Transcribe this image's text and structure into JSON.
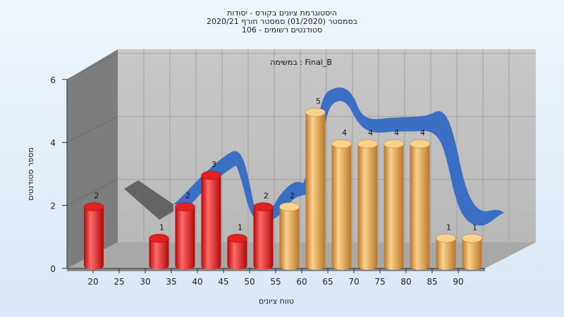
{
  "title_lines": [
    "היסטוגרמת ציונים בקורס - יסודות",
    "בסמסטר  (01/2020)  סמסטר חורף  2020/21",
    "סטודנטים רשומים - 106"
  ],
  "chart_data": {
    "type": "bar",
    "subtitle": "במשימה : Final_B",
    "xlabel": "טווח ציונים",
    "ylabel": "מספר סטודנטים",
    "x_ticks": [
      "20",
      "25",
      "30",
      "35",
      "40",
      "45",
      "50",
      "55",
      "60",
      "65",
      "70",
      "75",
      "80",
      "85",
      "90"
    ],
    "y_ticks": [
      0,
      2,
      4,
      6
    ],
    "ylim": [
      0,
      6
    ],
    "bars": [
      {
        "x": 20,
        "value": 2,
        "label": "2",
        "color": "red"
      },
      {
        "x": 32.5,
        "value": 1,
        "label": "1",
        "color": "red"
      },
      {
        "x": 37.5,
        "value": 2,
        "label": "2",
        "color": "red"
      },
      {
        "x": 42.5,
        "value": 3,
        "label": "3",
        "color": "red"
      },
      {
        "x": 47.5,
        "value": 1,
        "label": "1",
        "color": "red"
      },
      {
        "x": 52.5,
        "value": 2,
        "label": "2",
        "color": "red"
      },
      {
        "x": 57.5,
        "value": 2,
        "label": "2",
        "color": "orange"
      },
      {
        "x": 62.5,
        "value": 5,
        "label": "5",
        "color": "orange"
      },
      {
        "x": 67.5,
        "value": 4,
        "label": "4",
        "color": "orange"
      },
      {
        "x": 72.5,
        "value": 4,
        "label": "4",
        "color": "orange"
      },
      {
        "x": 77.5,
        "value": 4,
        "label": "4",
        "color": "orange"
      },
      {
        "x": 82.5,
        "value": 4,
        "label": "4",
        "color": "orange"
      },
      {
        "x": 87.5,
        "value": 1,
        "label": "1",
        "color": "orange"
      },
      {
        "x": 92.5,
        "value": 1,
        "label": "1",
        "color": "orange"
      }
    ],
    "colors": {
      "red_light": "#ff7070",
      "red": "#e32020",
      "red_dark": "#b00808",
      "orange_light": "#fbd28c",
      "orange": "#e8a24c",
      "orange_dark": "#b8752a",
      "ribbon": "#3a6fc4",
      "ribbon_shadow": "#555555",
      "back_wall": "#c0c0c0",
      "left_wall": "#7d7d7d",
      "floor": "#a8a8a8"
    },
    "grid": true
  }
}
